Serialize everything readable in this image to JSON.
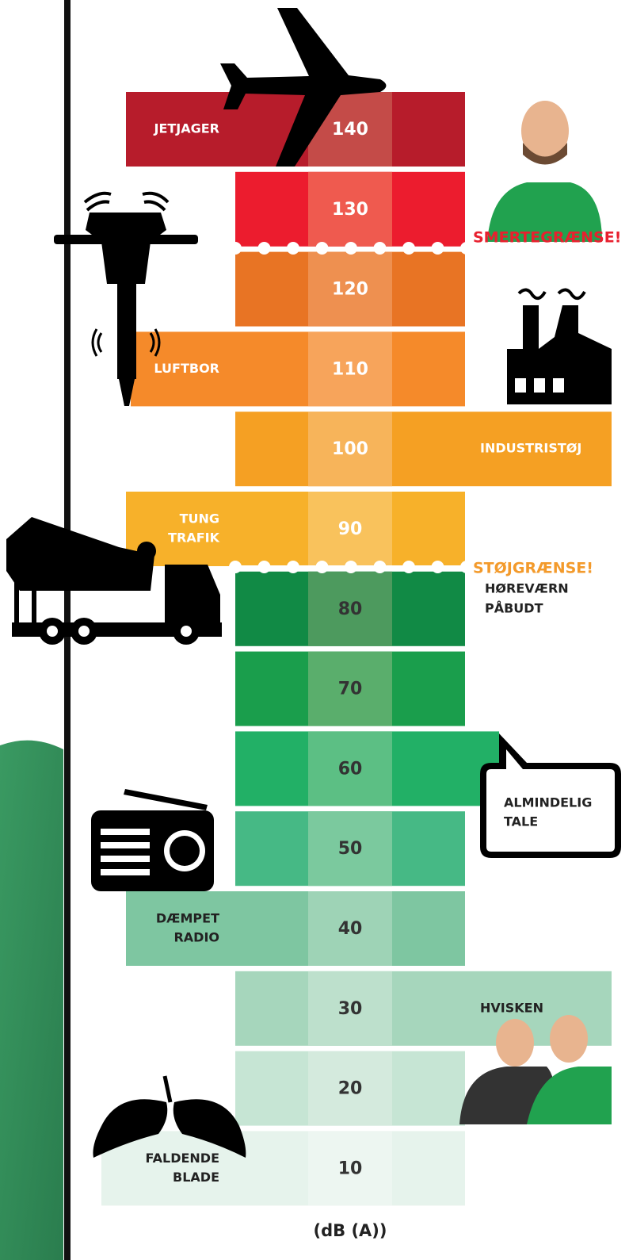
{
  "rows": [
    {
      "level": 140,
      "left": [
        "JETJAGER"
      ]
    },
    {
      "level": 130
    },
    {
      "level": 120
    },
    {
      "level": 110,
      "left": [
        "LUFTBOR"
      ]
    },
    {
      "level": 100,
      "right": [
        "INDUSTRISTØJ"
      ]
    },
    {
      "level": 90,
      "left": [
        "TUNG",
        "TRAFIK"
      ]
    },
    {
      "level": 80
    },
    {
      "level": 70
    },
    {
      "level": 60
    },
    {
      "level": 50
    },
    {
      "level": 40,
      "left": [
        "DÆMPET",
        "RADIO"
      ]
    },
    {
      "level": 30,
      "right": [
        "HVISKEN"
      ]
    },
    {
      "level": 20
    },
    {
      "level": 10,
      "left": [
        "FALDENDE",
        "BLADE"
      ]
    }
  ],
  "thresholds": {
    "pain": "SMERTEGRÆNSE!",
    "noise": "STØJGRÆNSE!",
    "protection": [
      "HØREVÆRN",
      "PÅBUDT"
    ]
  },
  "bubble": [
    "ALMINDELIG",
    "TALE"
  ],
  "unit": "(dB (A))"
}
